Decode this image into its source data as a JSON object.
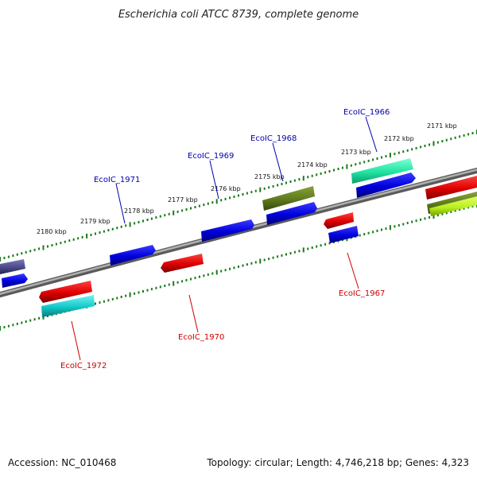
{
  "title": "Escherichia coli ATCC 8739, complete genome",
  "footer": {
    "accession": "Accession: NC_010468",
    "info": "Topology: circular; Length: 4,746,218 bp; Genes: 4,323"
  },
  "scale_labels": [
    "2171 kbp",
    "2172 kbp",
    "2173 kbp",
    "2174 kbp",
    "2175 kbp",
    "2176 kbp",
    "2177 kbp",
    "2178 kbp",
    "2179 kbp",
    "2180 kbp"
  ],
  "genes": [
    {
      "name": "EcoIC_1966",
      "strand": "forward",
      "color": "#0000cc"
    },
    {
      "name": "EcoIC_1967",
      "strand": "reverse",
      "color": "#cc0000"
    },
    {
      "name": "EcoIC_1968",
      "strand": "forward",
      "color": "#0000cc"
    },
    {
      "name": "EcoIC_1969",
      "strand": "forward",
      "color": "#0000cc"
    },
    {
      "name": "EcoIC_1970",
      "strand": "reverse",
      "color": "#cc0000"
    },
    {
      "name": "EcoIC_1971",
      "strand": "forward",
      "color": "#0000cc"
    },
    {
      "name": "EcoIC_1972",
      "strand": "reverse",
      "color": "#cc0000"
    }
  ],
  "colors": {
    "backbone": "#808080",
    "ticks": "#1a7a1a",
    "forward_label": "#0000aa",
    "reverse_label": "#cc0000"
  }
}
